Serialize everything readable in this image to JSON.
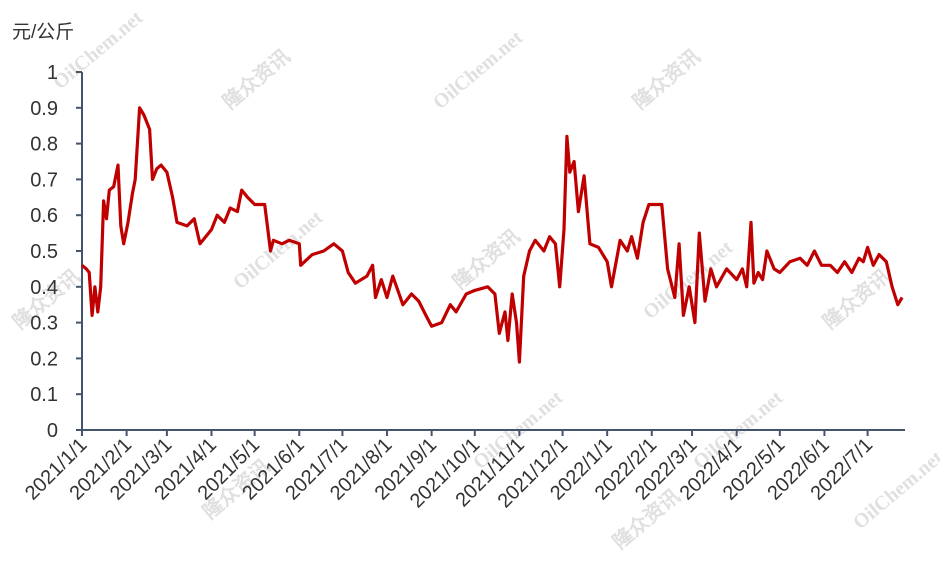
{
  "chart_data": {
    "type": "line",
    "y_label": "元/公斤",
    "watermark": {
      "brand": "隆众资讯",
      "site": "OilChem.net"
    },
    "x": [
      "2021/1/1",
      "2021/1/4",
      "2021/1/6",
      "2021/1/8",
      "2021/1/10",
      "2021/1/12",
      "2021/1/14",
      "2021/1/16",
      "2021/1/18",
      "2021/1/20",
      "2021/1/23",
      "2021/1/26",
      "2021/1/28",
      "2021/1/30",
      "2021/2/2",
      "2021/2/5",
      "2021/2/7",
      "2021/2/10",
      "2021/2/13",
      "2021/2/17",
      "2021/2/19",
      "2021/2/22",
      "2021/2/25",
      "2021/3/1",
      "2021/3/5",
      "2021/3/8",
      "2021/3/15",
      "2021/3/20",
      "2021/3/24",
      "2021/3/28",
      "2021/4/1",
      "2021/4/5",
      "2021/4/10",
      "2021/4/14",
      "2021/4/19",
      "2021/4/22",
      "2021/4/26",
      "2021/5/1",
      "2021/5/8",
      "2021/5/12",
      "2021/5/14",
      "2021/5/20",
      "2021/5/25",
      "2021/6/1",
      "2021/6/2",
      "2021/6/10",
      "2021/6/18",
      "2021/6/25",
      "2021/7/1",
      "2021/7/5",
      "2021/7/10",
      "2021/7/18",
      "2021/7/22",
      "2021/7/24",
      "2021/7/28",
      "2021/8/1",
      "2021/8/5",
      "2021/8/12",
      "2021/8/18",
      "2021/8/23",
      "2021/8/28",
      "2021/9/1",
      "2021/9/8",
      "2021/9/14",
      "2021/9/18",
      "2021/9/25",
      "2021/10/1",
      "2021/10/10",
      "2021/10/15",
      "2021/10/18",
      "2021/10/22",
      "2021/10/24",
      "2021/10/27",
      "2021/10/30",
      "2021/11/1",
      "2021/11/4",
      "2021/11/8",
      "2021/11/12",
      "2021/11/18",
      "2021/11/22",
      "2021/11/26",
      "2021/11/29",
      "2021/12/2",
      "2021/12/4",
      "2021/12/6",
      "2021/12/9",
      "2021/12/12",
      "2021/12/16",
      "2021/12/20",
      "2021/12/26",
      "2022/1/1",
      "2022/1/4",
      "2022/1/10",
      "2022/1/15",
      "2022/1/18",
      "2022/1/22",
      "2022/1/26",
      "2022/1/30",
      "2022/2/8",
      "2022/2/12",
      "2022/2/17",
      "2022/2/20",
      "2022/2/23",
      "2022/2/27",
      "2022/3/3",
      "2022/3/6",
      "2022/3/10",
      "2022/3/14",
      "2022/3/18",
      "2022/3/25",
      "2022/4/1",
      "2022/4/5",
      "2022/4/8",
      "2022/4/11",
      "2022/4/13",
      "2022/4/16",
      "2022/4/19",
      "2022/4/22",
      "2022/4/27",
      "2022/5/1",
      "2022/5/8",
      "2022/5/15",
      "2022/5/20",
      "2022/5/25",
      "2022/5/30",
      "2022/6/5",
      "2022/6/10",
      "2022/6/15",
      "2022/6/20",
      "2022/6/25",
      "2022/6/28",
      "2022/7/1",
      "2022/7/5",
      "2022/7/9",
      "2022/7/14",
      "2022/7/18",
      "2022/7/22",
      "2022/7/25"
    ],
    "series": [
      {
        "color": "#c00000",
        "values": [
          0.46,
          0.45,
          0.44,
          0.32,
          0.4,
          0.33,
          0.4,
          0.64,
          0.59,
          0.67,
          0.68,
          0.74,
          0.57,
          0.52,
          0.58,
          0.66,
          0.7,
          0.9,
          0.88,
          0.84,
          0.7,
          0.73,
          0.74,
          0.72,
          0.65,
          0.58,
          0.57,
          0.59,
          0.52,
          0.54,
          0.56,
          0.6,
          0.58,
          0.62,
          0.61,
          0.67,
          0.65,
          0.63,
          0.63,
          0.5,
          0.53,
          0.52,
          0.53,
          0.52,
          0.46,
          0.49,
          0.5,
          0.52,
          0.5,
          0.44,
          0.41,
          0.43,
          0.46,
          0.37,
          0.42,
          0.37,
          0.43,
          0.35,
          0.38,
          0.36,
          0.32,
          0.29,
          0.3,
          0.35,
          0.33,
          0.38,
          0.39,
          0.4,
          0.38,
          0.27,
          0.33,
          0.25,
          0.38,
          0.3,
          0.19,
          0.43,
          0.5,
          0.53,
          0.5,
          0.54,
          0.52,
          0.4,
          0.56,
          0.82,
          0.72,
          0.75,
          0.61,
          0.71,
          0.52,
          0.51,
          0.47,
          0.4,
          0.53,
          0.5,
          0.54,
          0.48,
          0.58,
          0.63,
          0.63,
          0.45,
          0.37,
          0.52,
          0.32,
          0.4,
          0.3,
          0.55,
          0.36,
          0.45,
          0.4,
          0.45,
          0.42,
          0.45,
          0.4,
          0.58,
          0.41,
          0.44,
          0.42,
          0.5,
          0.45,
          0.44,
          0.47,
          0.48,
          0.46,
          0.5,
          0.46,
          0.46,
          0.44,
          0.47,
          0.44,
          0.48,
          0.47,
          0.51,
          0.46,
          0.49,
          0.47,
          0.4,
          0.35,
          0.37
        ]
      }
    ],
    "xlim": [
      "2021/1/1",
      "2022/7/27"
    ],
    "xticks": [
      "2021/1/1",
      "2021/2/1",
      "2021/3/1",
      "2021/4/1",
      "2021/5/1",
      "2021/6/1",
      "2021/7/1",
      "2021/8/1",
      "2021/9/1",
      "2021/10/1",
      "2021/11/1",
      "2021/12/1",
      "2022/1/1",
      "2022/2/1",
      "2022/3/1",
      "2022/4/1",
      "2022/5/1",
      "2022/6/1",
      "2022/7/1"
    ],
    "ylim": [
      0,
      1
    ],
    "yticks": [
      0,
      0.1,
      0.2,
      0.3,
      0.4,
      0.5,
      0.6,
      0.7,
      0.8,
      0.9,
      1
    ]
  }
}
